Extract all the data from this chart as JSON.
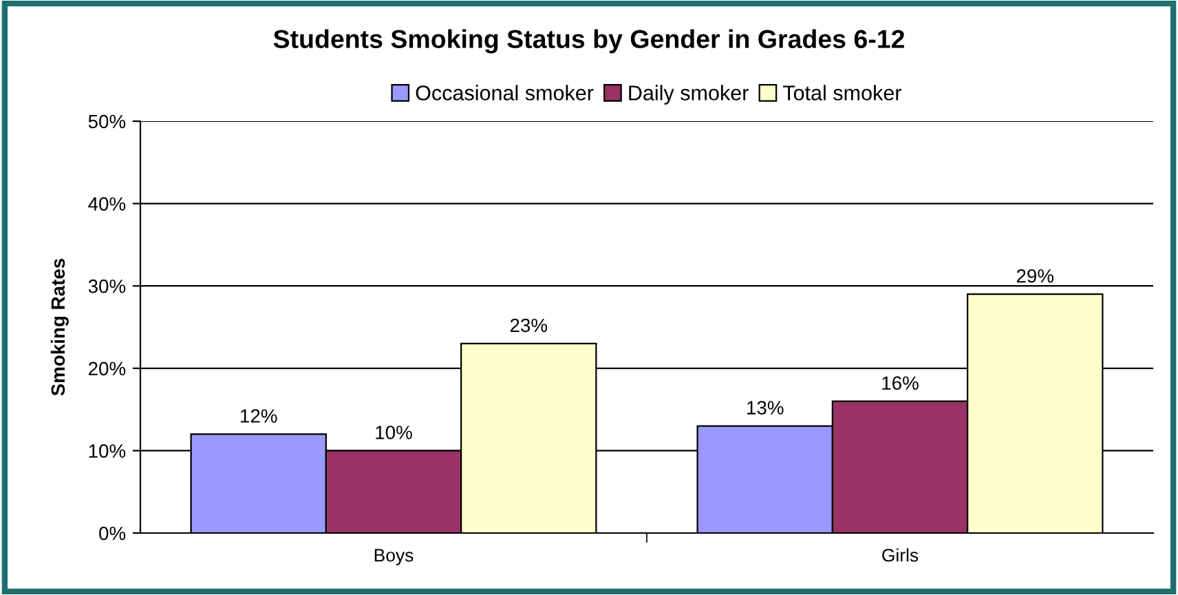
{
  "chart_data": {
    "type": "bar",
    "title": "Students Smoking Status by Gender in Grades 6-12",
    "ylabel": "Smoking Rates",
    "categories": [
      "Boys",
      "Girls"
    ],
    "series": [
      {
        "name": "Occasional smoker",
        "color": "#9999ff",
        "values": [
          12,
          13
        ],
        "value_labels": [
          "12%",
          "13%"
        ]
      },
      {
        "name": "Daily smoker",
        "color": "#993366",
        "values": [
          10,
          16
        ],
        "value_labels": [
          "10%",
          "16%"
        ]
      },
      {
        "name": "Total smoker",
        "color": "#ffffcc",
        "values": [
          23,
          29
        ],
        "value_labels": [
          "23%",
          "29%"
        ]
      }
    ],
    "ylim": [
      0,
      50
    ],
    "yticks": [
      {
        "value": 0,
        "label": "0%"
      },
      {
        "value": 10,
        "label": "10%"
      },
      {
        "value": 20,
        "label": "20%"
      },
      {
        "value": 30,
        "label": "30%"
      },
      {
        "value": 40,
        "label": "40%"
      },
      {
        "value": 50,
        "label": "50%"
      }
    ],
    "grid": "y",
    "legend": "top"
  }
}
